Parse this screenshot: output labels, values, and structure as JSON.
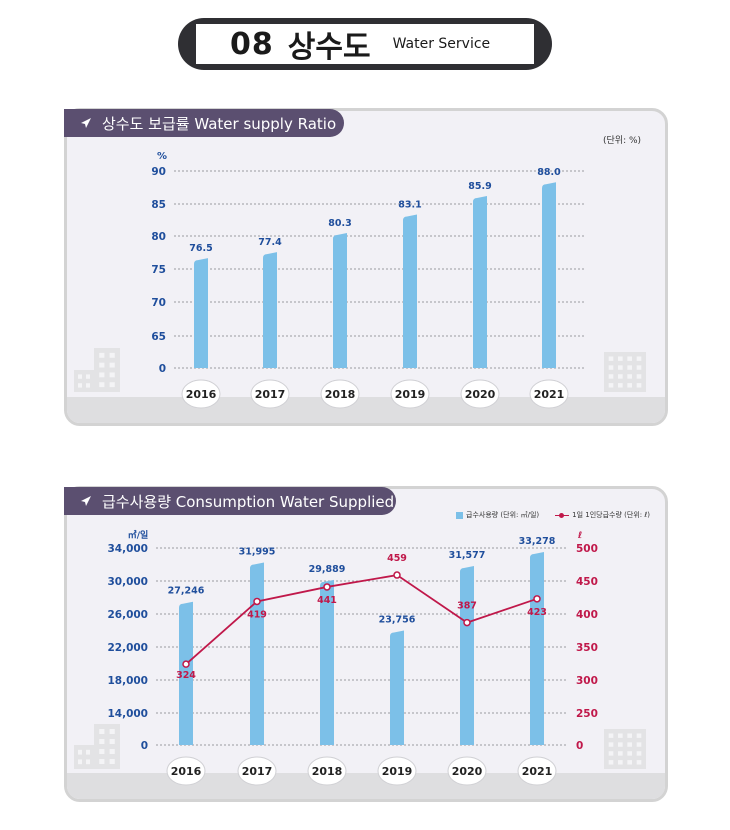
{
  "header": {
    "number": "08",
    "title_kr": "상수도",
    "title_en": "Water Service"
  },
  "chart1": {
    "label": "상수도 보급률 Water supply Ratio",
    "unit_note": "(단위: %)"
  },
  "chart2": {
    "label": "급수사용량 Consumption Water Supplied",
    "legend_bar": "급수사용량 (단위: ㎥/일)",
    "legend_line": "1일 1인당급수량 (단위: ℓ)"
  },
  "colors": {
    "bar": "#7cc0e8",
    "line": "#c0184a",
    "label_blue": "#1f4e9c",
    "label_red": "#c0184a",
    "panel_label_bg": "#5b4f70"
  },
  "chart_data": [
    {
      "type": "bar",
      "title": "상수도 보급률 Water supply Ratio",
      "ylabel": "%",
      "categories": [
        "2016",
        "2017",
        "2018",
        "2019",
        "2020",
        "2021"
      ],
      "values": [
        76.5,
        77.4,
        80.3,
        83.1,
        85.9,
        88.0
      ],
      "value_labels": [
        "76.5",
        "77.4",
        "80.3",
        "83.1",
        "85.9",
        "88.0"
      ],
      "y_ticks": [
        "0",
        "65",
        "70",
        "75",
        "80",
        "85",
        "90"
      ],
      "ylim": [
        60,
        90
      ],
      "axis_break": true,
      "grid": true
    },
    {
      "type": "bar+line",
      "title": "급수사용량 Consumption Water Supplied",
      "categories": [
        "2016",
        "2017",
        "2018",
        "2019",
        "2020",
        "2021"
      ],
      "series": [
        {
          "name": "급수사용량 (단위: ㎥/일)",
          "type": "bar",
          "axis": "left",
          "values": [
            27246,
            31995,
            29889,
            23756,
            31577,
            33278
          ],
          "value_labels": [
            "27,246",
            "31,995",
            "29,889",
            "23,756",
            "31,577",
            "33,278"
          ]
        },
        {
          "name": "1일 1인당급수량 (단위: ℓ)",
          "type": "line",
          "axis": "right",
          "values": [
            324,
            419,
            441,
            459,
            387,
            423
          ],
          "value_labels": [
            "324",
            "419",
            "441",
            "459",
            "387",
            "423"
          ]
        }
      ],
      "left_axis": {
        "label": "㎥/일",
        "ticks": [
          "0",
          "14,000",
          "18,000",
          "22,000",
          "26,000",
          "30,000",
          "34,000"
        ],
        "ylim": [
          10000,
          34000
        ],
        "axis_break": true
      },
      "right_axis": {
        "label": "ℓ",
        "ticks": [
          "0",
          "250",
          "300",
          "350",
          "400",
          "450",
          "500"
        ],
        "ylim": [
          200,
          500
        ],
        "axis_break": true
      },
      "grid": true,
      "legend_position": "top-right"
    }
  ]
}
